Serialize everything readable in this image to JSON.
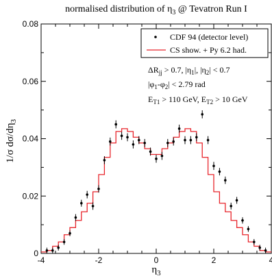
{
  "chart_data": {
    "type": "line",
    "title": "normalised distribution of η3 @ Tevatron Run I",
    "title_parts": {
      "pre": "normalised distribution of η",
      "sub": "3",
      "post": " @ Tevatron Run I"
    },
    "xlabel": {
      "base": "η",
      "sub": "3"
    },
    "ylabel": {
      "pre": "1/σ dσ/dη",
      "sub": "3"
    },
    "xlim": [
      -4,
      4
    ],
    "ylim": [
      0,
      0.08
    ],
    "x_ticks": [
      -4,
      -2,
      0,
      2,
      4
    ],
    "x_tick_labels": [
      "-4",
      "-2",
      "0",
      "2",
      "4"
    ],
    "y_ticks": [
      0,
      0.02,
      0.04,
      0.06,
      0.08
    ],
    "y_tick_labels": [
      "0",
      "0.02",
      "0.04",
      "0.06",
      "0.08"
    ],
    "grid": false,
    "legend_position": "top-right",
    "legend": [
      {
        "label": "CDF 94 (detector level)",
        "marker": "point"
      },
      {
        "label": "CS show. + Py 6.2 had.",
        "marker": "line",
        "color": "#e8232a"
      }
    ],
    "annotations": [
      {
        "parts": [
          [
            "ΔR",
            ""
          ],
          [
            "jj",
            "sub"
          ],
          [
            " > 0.7, |η",
            ""
          ],
          [
            "1",
            "sub"
          ],
          [
            "|, |η",
            ""
          ],
          [
            "2",
            "sub"
          ],
          [
            "| < 0.7",
            ""
          ]
        ]
      },
      {
        "parts": [
          [
            "|φ",
            ""
          ],
          [
            "1",
            "sub"
          ],
          [
            "-φ",
            ""
          ],
          [
            "2",
            "sub"
          ],
          [
            "| < 2.79 rad",
            ""
          ]
        ]
      },
      {
        "parts": [
          [
            "E",
            ""
          ],
          [
            "T1",
            "sub"
          ],
          [
            " > 110 GeV, E",
            ""
          ],
          [
            "T2",
            "sub"
          ],
          [
            " > 10 GeV",
            ""
          ]
        ]
      }
    ],
    "series": [
      {
        "name": "CDF 94 (detector level)",
        "type": "scatter",
        "color": "#000000",
        "points": [
          {
            "x": -3.8,
            "y": 0.001,
            "err": 0.001
          },
          {
            "x": -3.6,
            "y": 0.001,
            "err": 0.001
          },
          {
            "x": -3.4,
            "y": 0.002,
            "err": 0.001
          },
          {
            "x": -3.2,
            "y": 0.004,
            "err": 0.001
          },
          {
            "x": -3.0,
            "y": 0.007,
            "err": 0.001
          },
          {
            "x": -2.8,
            "y": 0.0125,
            "err": 0.0012
          },
          {
            "x": -2.6,
            "y": 0.0175,
            "err": 0.0012
          },
          {
            "x": -2.4,
            "y": 0.0205,
            "err": 0.0013
          },
          {
            "x": -2.2,
            "y": 0.0165,
            "err": 0.0013
          },
          {
            "x": -2.0,
            "y": 0.0225,
            "err": 0.0013
          },
          {
            "x": -1.8,
            "y": 0.0325,
            "err": 0.0014
          },
          {
            "x": -1.6,
            "y": 0.039,
            "err": 0.0014
          },
          {
            "x": -1.4,
            "y": 0.045,
            "err": 0.0014
          },
          {
            "x": -1.2,
            "y": 0.041,
            "err": 0.0014
          },
          {
            "x": -1.0,
            "y": 0.0405,
            "err": 0.0014
          },
          {
            "x": -0.8,
            "y": 0.038,
            "err": 0.0014
          },
          {
            "x": -0.6,
            "y": 0.0395,
            "err": 0.0014
          },
          {
            "x": -0.4,
            "y": 0.0385,
            "err": 0.0014
          },
          {
            "x": -0.2,
            "y": 0.0355,
            "err": 0.0014
          },
          {
            "x": 0.0,
            "y": 0.033,
            "err": 0.0014
          },
          {
            "x": 0.2,
            "y": 0.034,
            "err": 0.0014
          },
          {
            "x": 0.4,
            "y": 0.0385,
            "err": 0.0014
          },
          {
            "x": 0.6,
            "y": 0.039,
            "err": 0.0014
          },
          {
            "x": 0.8,
            "y": 0.0435,
            "err": 0.0014
          },
          {
            "x": 1.0,
            "y": 0.0395,
            "err": 0.0014
          },
          {
            "x": 1.2,
            "y": 0.0395,
            "err": 0.0014
          },
          {
            "x": 1.4,
            "y": 0.0405,
            "err": 0.0014
          },
          {
            "x": 1.6,
            "y": 0.0485,
            "err": 0.0014
          },
          {
            "x": 1.8,
            "y": 0.0395,
            "err": 0.0014
          },
          {
            "x": 2.0,
            "y": 0.0305,
            "err": 0.0014
          },
          {
            "x": 2.2,
            "y": 0.0285,
            "err": 0.0013
          },
          {
            "x": 2.4,
            "y": 0.0255,
            "err": 0.0013
          },
          {
            "x": 2.6,
            "y": 0.0165,
            "err": 0.0012
          },
          {
            "x": 2.8,
            "y": 0.0185,
            "err": 0.0012
          },
          {
            "x": 3.0,
            "y": 0.0115,
            "err": 0.0011
          },
          {
            "x": 3.2,
            "y": 0.0085,
            "err": 0.001
          },
          {
            "x": 3.4,
            "y": 0.004,
            "err": 0.001
          },
          {
            "x": 3.6,
            "y": 0.002,
            "err": 0.001
          },
          {
            "x": 3.8,
            "y": 0.001,
            "err": 0.001
          }
        ]
      },
      {
        "name": "CS show. + Py 6.2 had.",
        "type": "step",
        "color": "#e8232a",
        "bin_edges": [
          -4.0,
          -3.8,
          -3.6,
          -3.4,
          -3.2,
          -3.0,
          -2.8,
          -2.6,
          -2.4,
          -2.2,
          -2.0,
          -1.8,
          -1.6,
          -1.4,
          -1.2,
          -1.0,
          -0.8,
          -0.6,
          -0.4,
          -0.2,
          0.0,
          0.2,
          0.4,
          0.6,
          0.8,
          1.0,
          1.2,
          1.4,
          1.6,
          1.8,
          2.0,
          2.2,
          2.4,
          2.6,
          2.8,
          3.0,
          3.2,
          3.4,
          3.6,
          3.8,
          4.0
        ],
        "values": [
          0.0005,
          0.001,
          0.0025,
          0.004,
          0.0065,
          0.009,
          0.0115,
          0.0145,
          0.0175,
          0.0215,
          0.0275,
          0.0335,
          0.0385,
          0.0425,
          0.0435,
          0.0425,
          0.0405,
          0.0385,
          0.0365,
          0.0345,
          0.0345,
          0.0365,
          0.0385,
          0.0405,
          0.0425,
          0.0435,
          0.0425,
          0.0385,
          0.0335,
          0.0275,
          0.0215,
          0.0175,
          0.0145,
          0.0115,
          0.009,
          0.0065,
          0.004,
          0.0025,
          0.001,
          0.0005
        ]
      }
    ]
  }
}
